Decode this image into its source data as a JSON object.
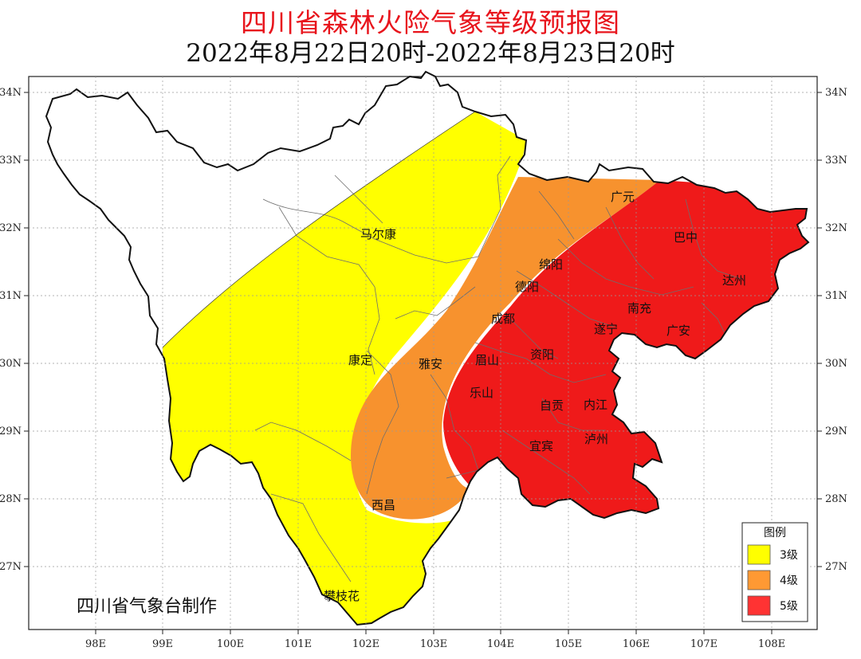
{
  "title": "四川省森林火险气象等级预报图",
  "subtitle": "2022年8月22日20时-2022年8月23日20时",
  "credit": "四川省气象台制作",
  "x_ticks": [
    "98E",
    "99E",
    "100E",
    "101E",
    "102E",
    "103E",
    "104E",
    "105E",
    "106E",
    "107E",
    "108E"
  ],
  "y_ticks": [
    "34N",
    "33N",
    "32N",
    "31N",
    "30N",
    "29N",
    "28N",
    "27N"
  ],
  "cities": [
    "马尔康",
    "广元",
    "巴中",
    "绵阳",
    "德阳",
    "达州",
    "南充",
    "成都",
    "遂宁",
    "广安",
    "康定",
    "雅安",
    "眉山",
    "资阳",
    "乐山",
    "自贡",
    "内江",
    "泸州",
    "宜宾",
    "西昌",
    "攀枝花"
  ],
  "legend": {
    "title": "图例",
    "items": [
      {
        "label": "3级",
        "color": "#ffff00"
      },
      {
        "label": "4级",
        "color": "#ff9933"
      },
      {
        "label": "5级",
        "color": "#ff3333"
      }
    ]
  },
  "colors": {
    "level3": "#ffff00",
    "level4": "#f7922e",
    "level5": "#ef1a1a",
    "title": "#e8141c"
  }
}
